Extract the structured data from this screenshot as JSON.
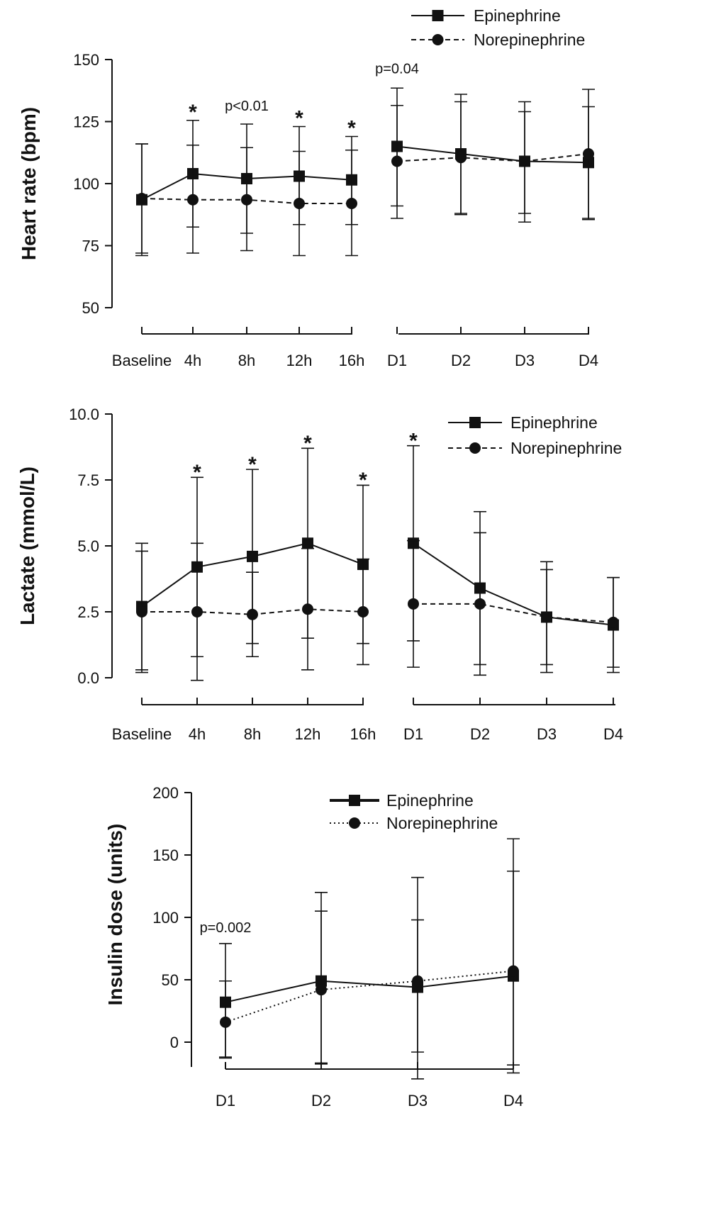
{
  "chart_data": [
    {
      "type": "line",
      "ylabel": "Heart rate (bpm)",
      "ylim": [
        50,
        150
      ],
      "yticks": [
        50,
        75,
        100,
        125,
        150
      ],
      "segments": [
        {
          "categories": [
            "Baseline",
            "4h",
            "8h",
            "12h",
            "16h"
          ],
          "series": [
            {
              "name": "Epinephrine",
              "values": [
                93.5,
                104,
                102,
                103,
                101.5
              ],
              "err": [
                [
                  72,
                  116
                ],
                [
                  82.5,
                  125.5
                ],
                [
                  80,
                  124
                ],
                [
                  83.5,
                  123
                ],
                [
                  83.5,
                  119
                ]
              ]
            },
            {
              "name": "Norepinephrine",
              "values": [
                94,
                93.5,
                93.5,
                92,
                92
              ],
              "err": [
                [
                  71,
                  116
                ],
                [
                  72,
                  115.5
                ],
                [
                  73,
                  114.5
                ],
                [
                  71,
                  113
                ],
                [
                  71,
                  113.5
                ]
              ]
            }
          ]
        },
        {
          "categories": [
            "D1",
            "D2",
            "D3",
            "D4"
          ],
          "series": [
            {
              "name": "Epinephrine",
              "values": [
                115,
                112,
                109,
                108.5
              ],
              "err": [
                [
                  91,
                  138.5
                ],
                [
                  88,
                  136
                ],
                [
                  88,
                  133
                ],
                [
                  86,
                  138
                ]
              ]
            },
            {
              "name": "Norepinephrine",
              "values": [
                109,
                110.5,
                109,
                112
              ],
              "err": [
                [
                  86,
                  131.5
                ],
                [
                  87.5,
                  133
                ],
                [
                  84.5,
                  129
                ],
                [
                  85.5,
                  131
                ]
              ]
            }
          ]
        }
      ],
      "annotations": [
        {
          "text": "*",
          "segment": 0,
          "index": 1,
          "y": 129.5
        },
        {
          "text": "p<0.01",
          "segment": 0,
          "index": 2,
          "y": 129.5
        },
        {
          "text": "*",
          "segment": 0,
          "index": 3,
          "y": 127
        },
        {
          "text": "*",
          "segment": 0,
          "index": 4,
          "y": 123
        },
        {
          "text": "p=0.04",
          "segment": 1,
          "index": 0,
          "y": 144.5
        }
      ],
      "legend": {
        "position": "top-right",
        "entries": [
          "Epinephrine",
          "Norepinephrine"
        ]
      }
    },
    {
      "type": "line",
      "ylabel": "Lactate (mmol/L)",
      "ylim": [
        0,
        10
      ],
      "yticks": [
        "0.0",
        "2.5",
        "5.0",
        "7.5",
        "10.0"
      ],
      "segments": [
        {
          "categories": [
            "Baseline",
            "4h",
            "8h",
            "12h",
            "16h"
          ],
          "series": [
            {
              "name": "Epinephrine",
              "values": [
                2.7,
                4.2,
                4.6,
                5.1,
                4.3
              ],
              "err": [
                [
                  0.3,
                  5.1
                ],
                [
                  0.8,
                  7.6
                ],
                [
                  1.3,
                  7.9
                ],
                [
                  1.5,
                  8.7
                ],
                [
                  1.3,
                  7.3
                ]
              ]
            },
            {
              "name": "Norepinephrine",
              "values": [
                2.5,
                2.5,
                2.4,
                2.6,
                2.5
              ],
              "err": [
                [
                  0.2,
                  4.8
                ],
                [
                  -0.1,
                  5.1
                ],
                [
                  0.8,
                  4.0
                ],
                [
                  0.3,
                  4.9
                ],
                [
                  0.5,
                  4.5
                ]
              ]
            }
          ]
        },
        {
          "categories": [
            "D1",
            "D2",
            "D3",
            "D4"
          ],
          "series": [
            {
              "name": "Epinephrine",
              "values": [
                5.1,
                3.4,
                2.3,
                2.0
              ],
              "err": [
                [
                  1.4,
                  8.8
                ],
                [
                  0.5,
                  6.3
                ],
                [
                  0.5,
                  4.4
                ],
                [
                  0.4,
                  3.8
                ]
              ]
            },
            {
              "name": "Norepinephrine",
              "values": [
                2.8,
                2.8,
                2.3,
                2.1
              ],
              "err": [
                [
                  0.4,
                  5.2
                ],
                [
                  0.1,
                  5.5
                ],
                [
                  0.2,
                  4.1
                ],
                [
                  0.2,
                  3.8
                ]
              ]
            }
          ]
        }
      ],
      "annotations": [
        {
          "text": "*",
          "segment": 0,
          "index": 1,
          "y": 7.85
        },
        {
          "text": "*",
          "segment": 0,
          "index": 2,
          "y": 8.15
        },
        {
          "text": "*",
          "segment": 0,
          "index": 3,
          "y": 8.95
        },
        {
          "text": "*",
          "segment": 0,
          "index": 4,
          "y": 7.55
        },
        {
          "text": "*",
          "segment": 1,
          "index": 0,
          "y": 9.05
        }
      ],
      "legend": {
        "position": "top-right",
        "entries": [
          "Epinephrine",
          "Norepinephrine"
        ]
      }
    },
    {
      "type": "line",
      "ylabel": "Insulin dose (units)",
      "ylim": [
        -25,
        200
      ],
      "yticks": [
        0,
        50,
        100,
        150,
        200
      ],
      "segments": [
        {
          "categories": [
            "D1",
            "D2",
            "D3",
            "D4"
          ],
          "series": [
            {
              "name": "Epinephrine",
              "values": [
                32,
                49,
                44,
                53
              ],
              "err": [
                [
                  -15,
                  79
                ],
                [
                  -21,
                  120
                ],
                [
                  -10,
                  132
                ],
                [
                  -31,
                  163
                ]
              ]
            },
            {
              "name": "Norepinephrine",
              "values": [
                16,
                42,
                49,
                57
              ],
              "err": [
                [
                  -16,
                  49
                ],
                [
                  -22,
                  105
                ],
                [
                  -37,
                  98
                ],
                [
                  -23,
                  137
                ]
              ]
            }
          ]
        }
      ],
      "annotations": [
        {
          "text": "p=0.002",
          "segment": 0,
          "index": 0,
          "y": 88
        }
      ],
      "legend": {
        "position": "top-center",
        "entries": [
          "Epinephrine",
          "Norepinephrine"
        ]
      }
    }
  ]
}
